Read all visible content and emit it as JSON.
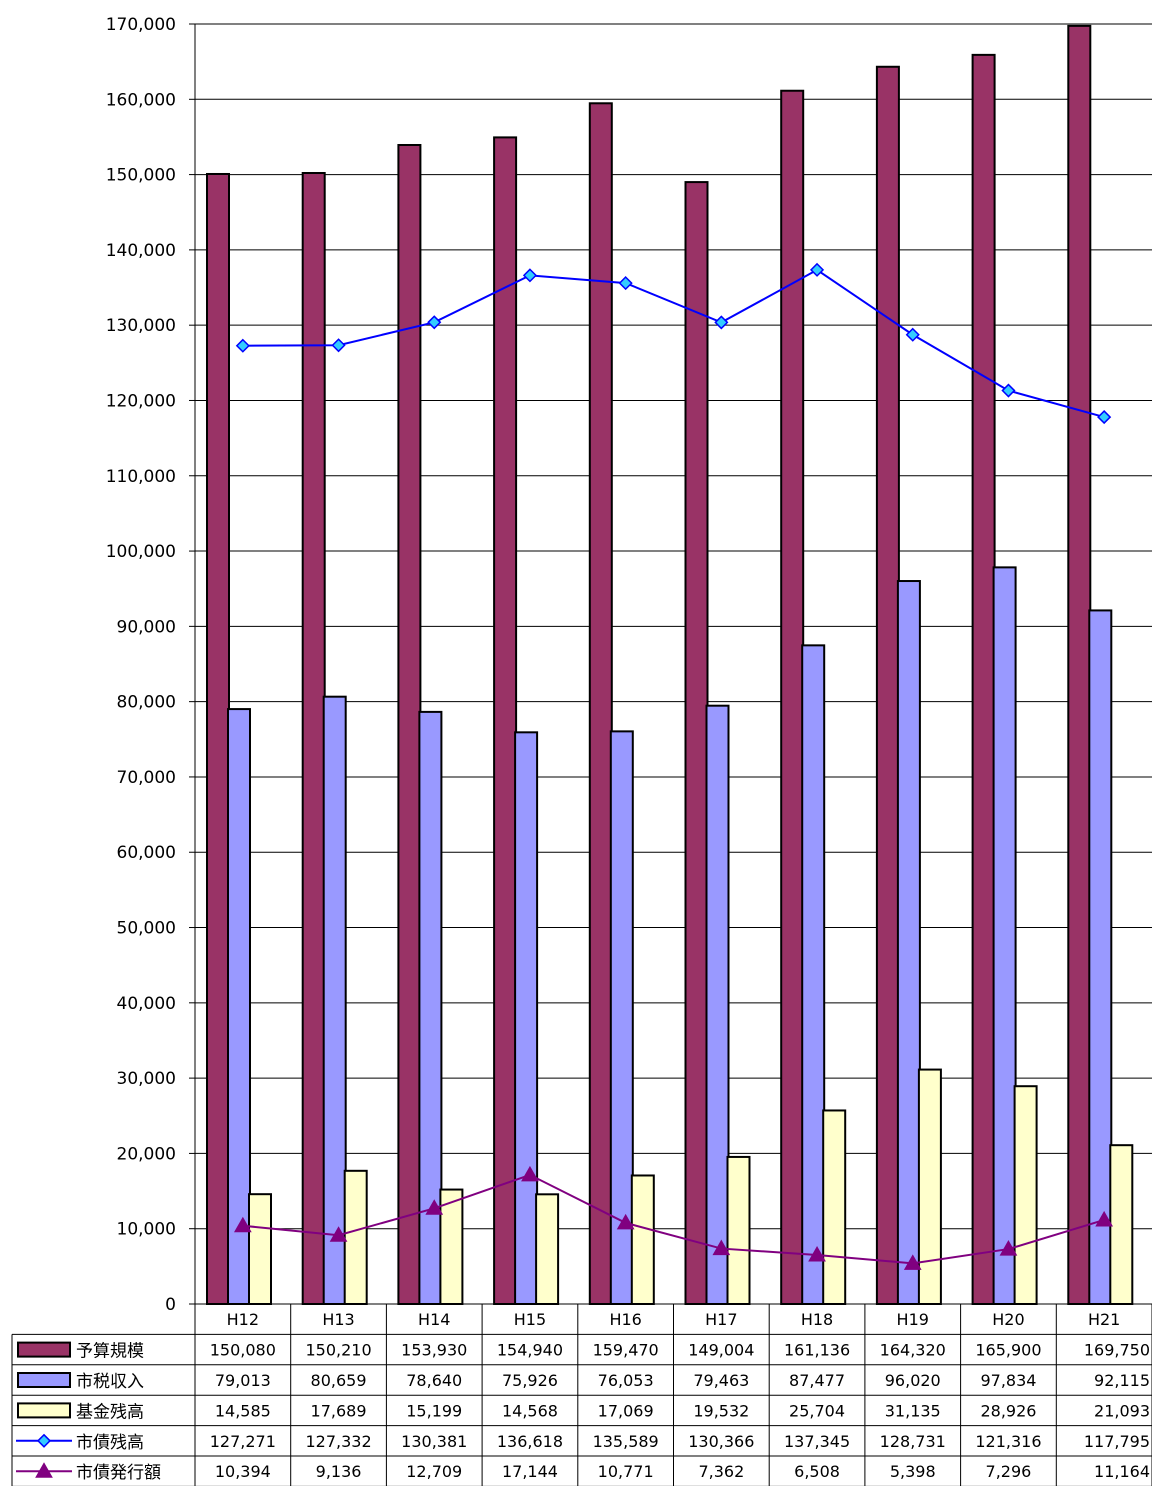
{
  "chart_data": {
    "type": "bar",
    "categories": [
      "H12",
      "H13",
      "H14",
      "H15",
      "H16",
      "H17",
      "H18",
      "H19",
      "H20",
      "H21"
    ],
    "ylim": [
      0,
      170000
    ],
    "yticks": [
      0,
      10000,
      20000,
      30000,
      40000,
      50000,
      60000,
      70000,
      80000,
      90000,
      100000,
      110000,
      120000,
      130000,
      140000,
      150000,
      160000,
      170000
    ],
    "ytick_labels": [
      "0",
      "10,000",
      "20,000",
      "30,000",
      "40,000",
      "50,000",
      "60,000",
      "70,000",
      "80,000",
      "90,000",
      "100,000",
      "110,000",
      "120,000",
      "130,000",
      "140,000",
      "150,000",
      "160,000",
      "170,000"
    ],
    "grid": true,
    "legend_placement": "data-table",
    "series": [
      {
        "name": "予算規模",
        "kind": "bar",
        "color": "#993366",
        "values": [
          150080,
          150210,
          153930,
          154940,
          159470,
          149004,
          161136,
          164320,
          165900,
          169750
        ],
        "labels": [
          "150,080",
          "150,210",
          "153,930",
          "154,940",
          "159,470",
          "149,004",
          "161,136",
          "164,320",
          "165,900",
          "169,750"
        ]
      },
      {
        "name": "市税収入",
        "kind": "bar",
        "color": "#9999ff",
        "values": [
          79013,
          80659,
          78640,
          75926,
          76053,
          79463,
          87477,
          96020,
          97834,
          92115
        ],
        "labels": [
          "79,013",
          "80,659",
          "78,640",
          "75,926",
          "76,053",
          "79,463",
          "87,477",
          "96,020",
          "97,834",
          "92,115"
        ]
      },
      {
        "name": "基金残高",
        "kind": "bar",
        "color": "#ffffcc",
        "values": [
          14585,
          17689,
          15199,
          14568,
          17069,
          19532,
          25704,
          31135,
          28926,
          21093
        ],
        "labels": [
          "14,585",
          "17,689",
          "15,199",
          "14,568",
          "17,069",
          "19,532",
          "25,704",
          "31,135",
          "28,926",
          "21,093"
        ]
      },
      {
        "name": "市債残高",
        "kind": "line",
        "color": "#0000ff",
        "marker": "diamond",
        "marker_color": "#33ccff",
        "values": [
          127271,
          127332,
          130381,
          136618,
          135589,
          130366,
          137345,
          128731,
          121316,
          117795
        ],
        "labels": [
          "127,271",
          "127,332",
          "130,381",
          "136,618",
          "135,589",
          "130,366",
          "137,345",
          "128,731",
          "121,316",
          "117,795"
        ]
      },
      {
        "name": "市債発行額",
        "kind": "line",
        "color": "#800080",
        "marker": "triangle",
        "marker_color": "#800080",
        "values": [
          10394,
          9136,
          12709,
          17144,
          10771,
          7362,
          6508,
          5398,
          7296,
          11164
        ],
        "labels": [
          "10,394",
          "9,136",
          "12,709",
          "17,144",
          "10,771",
          "7,362",
          "6,508",
          "5,398",
          "7,296",
          "11,164"
        ]
      }
    ]
  }
}
